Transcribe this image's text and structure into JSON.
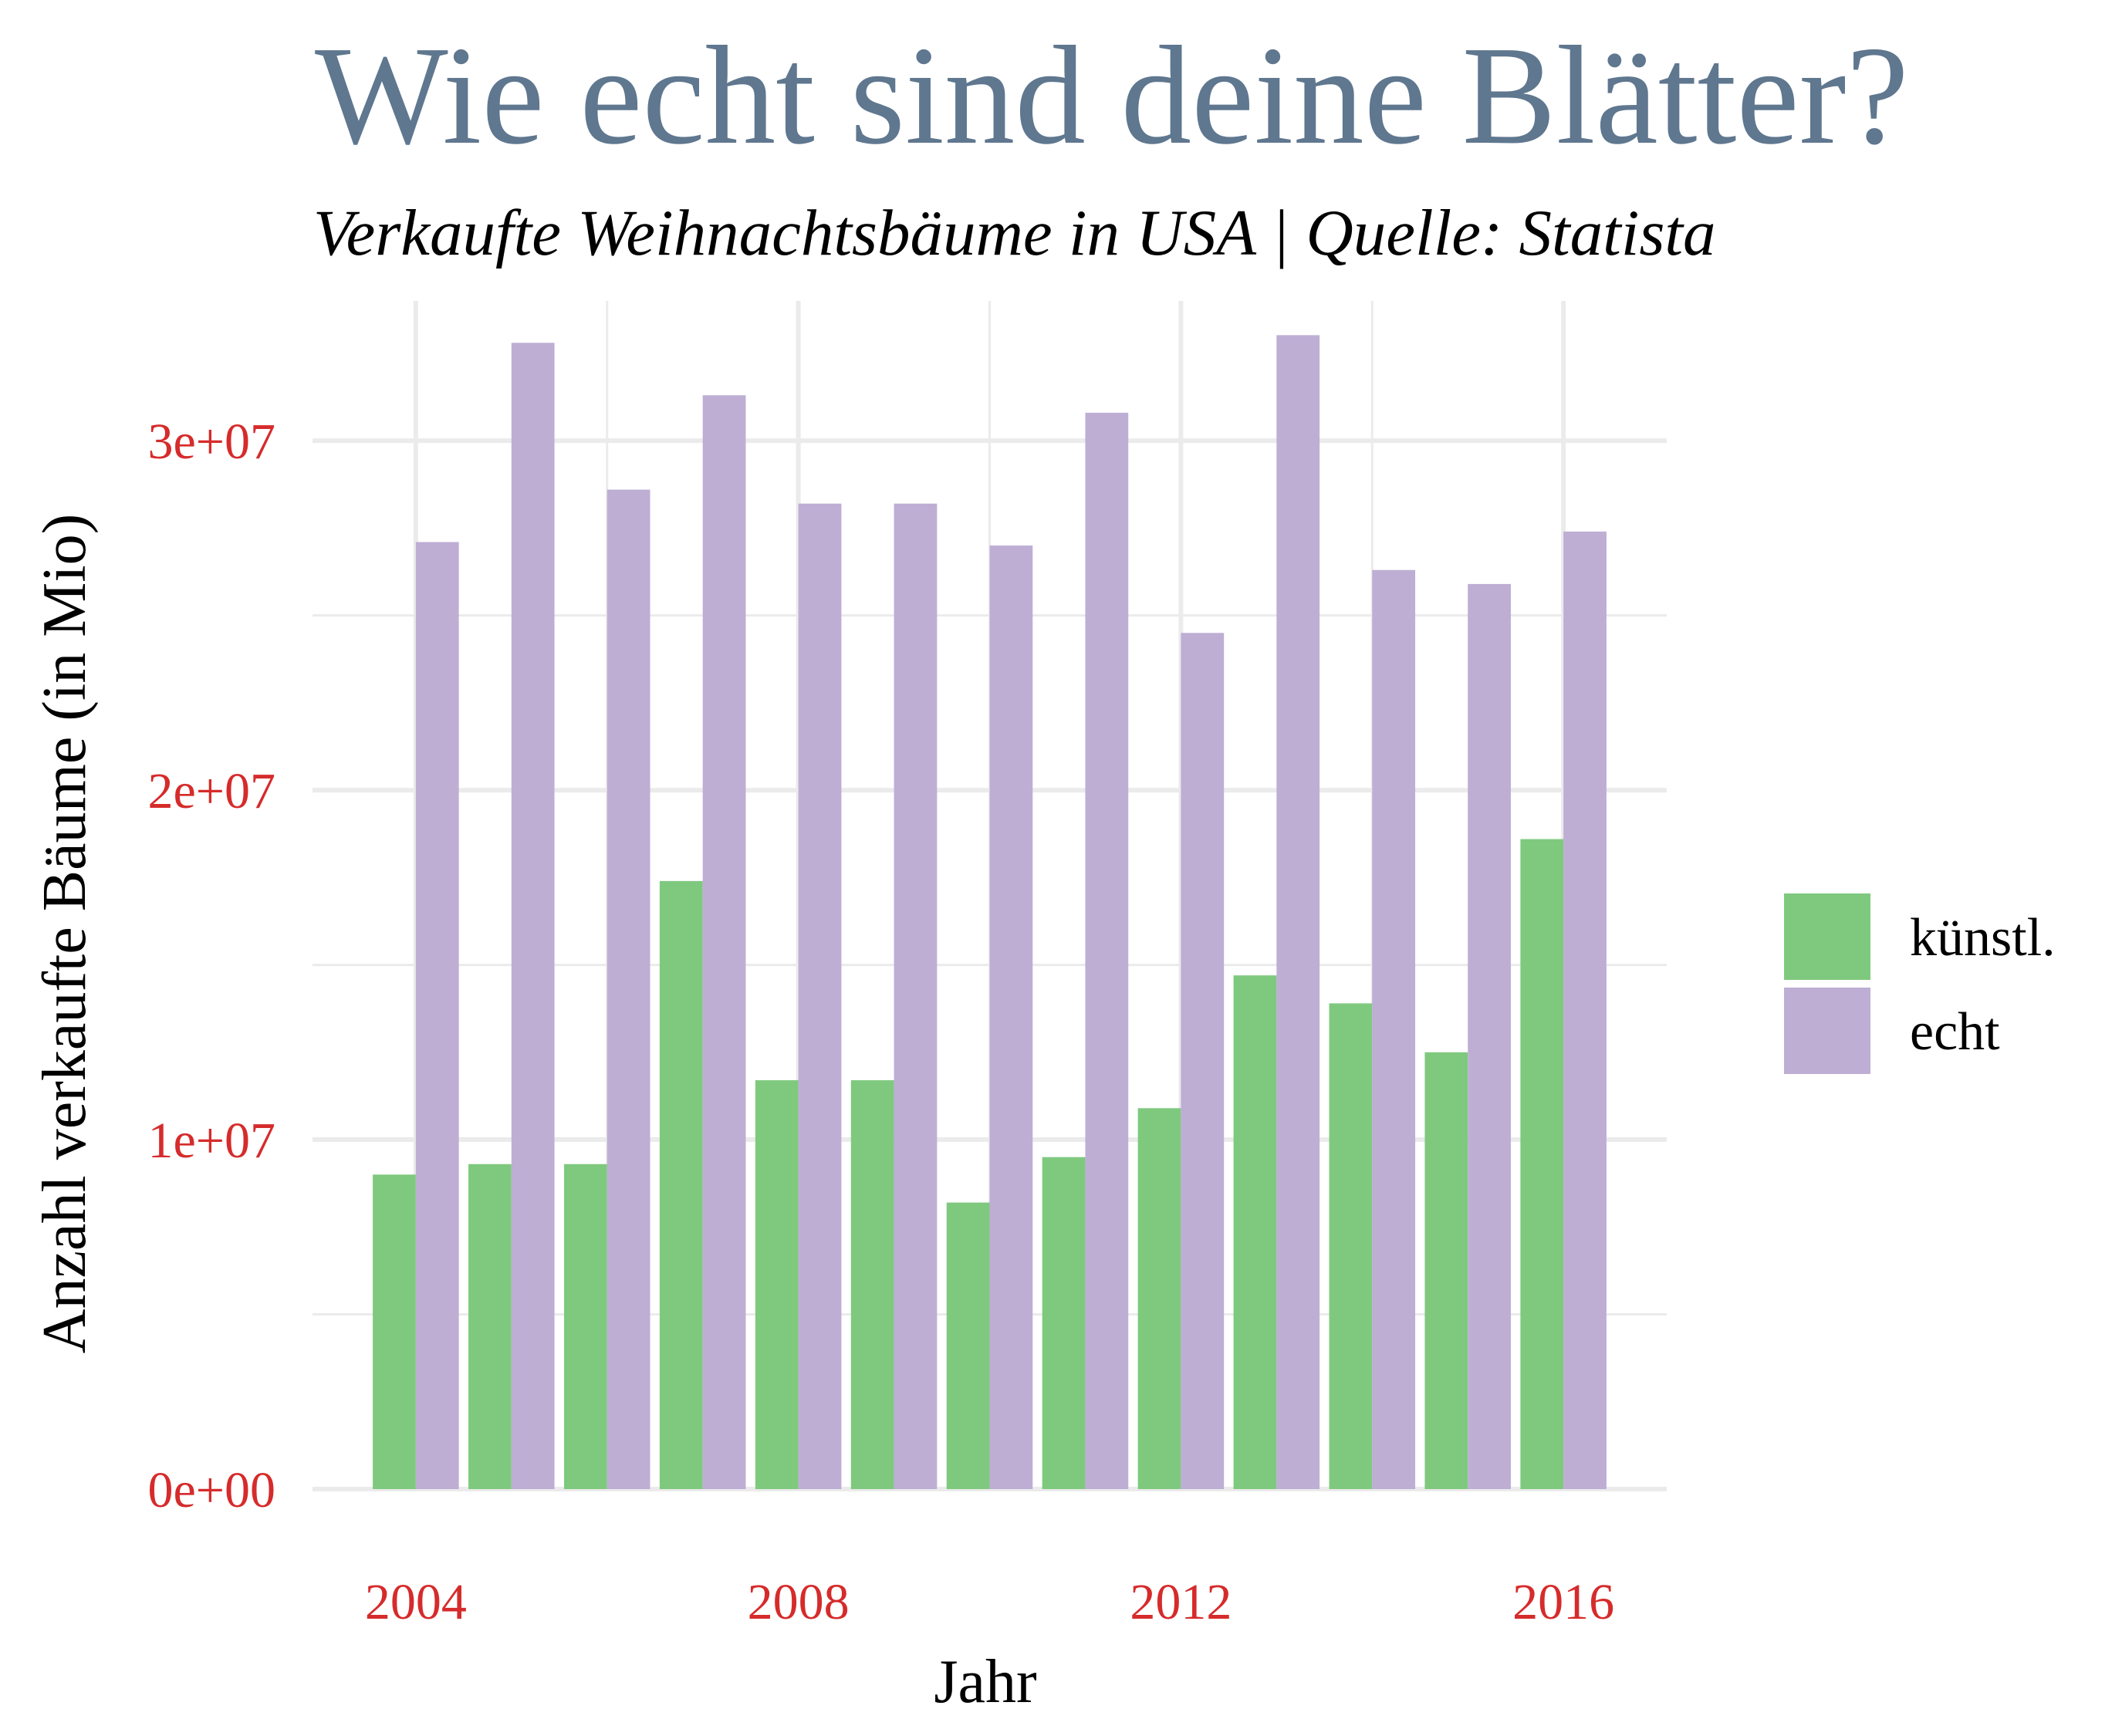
{
  "chart_data": {
    "type": "bar",
    "title": "Wie echt sind deine Blätter?",
    "subtitle": "Verkaufte Weihnachtsbäume in USA | Quelle: Statista",
    "xlabel": "Jahr",
    "ylabel": "Anzahl verkaufte Bäume (in Mio)",
    "categories": [
      2004,
      2005,
      2006,
      2007,
      2008,
      2009,
      2010,
      2011,
      2012,
      2013,
      2014,
      2015,
      2016
    ],
    "series": [
      {
        "name": "künstl.",
        "color": "#7fc97f",
        "values": [
          9000000,
          9300000,
          9300000,
          17400000,
          11700000,
          11700000,
          8200000,
          9500000,
          10900000,
          14700000,
          13900000,
          12500000,
          18600000
        ]
      },
      {
        "name": "echt",
        "color": "#beaed4",
        "values": [
          27100000,
          32800000,
          28600000,
          31300000,
          28200000,
          28200000,
          27000000,
          30800000,
          24500000,
          33020000,
          26300000,
          25900000,
          27400000
        ]
      }
    ],
    "x_ticks": [
      2004,
      2008,
      2012,
      2016
    ],
    "x_tick_labels": [
      "2004",
      "2008",
      "2012",
      "2016"
    ],
    "y_ticks": [
      0,
      10000000,
      20000000,
      30000000
    ],
    "y_tick_labels": [
      "0e+00",
      "1e+07",
      "2e+07",
      "3e+07"
    ],
    "xlim": [
      2002.92,
      2017.08
    ],
    "ylim": [
      0,
      34000000
    ],
    "grid": true,
    "legend_position": "right",
    "colors": {
      "title": "#5f778f",
      "tick_labels": "#d62b2b",
      "grid": "#ebebeb"
    }
  }
}
